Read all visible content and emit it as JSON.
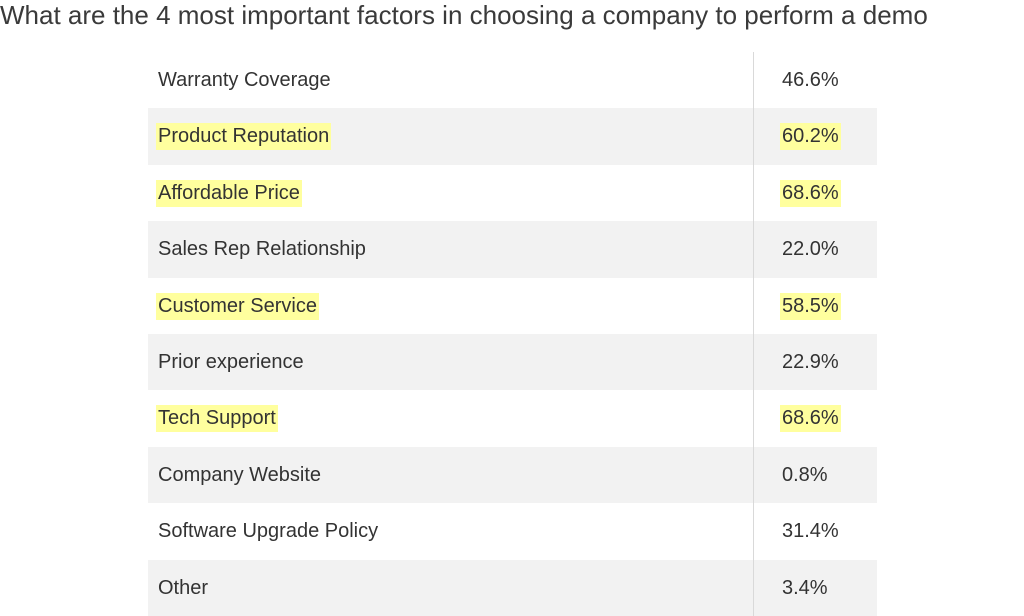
{
  "highlight_color": "#ffff9e",
  "chart_data": {
    "type": "table",
    "title": "What are the 4 most important factors in choosing a company to perform a demo",
    "columns": [
      "",
      ""
    ],
    "rows": [
      {
        "label": "Warranty Coverage",
        "value": "46.6%",
        "highlighted": false
      },
      {
        "label": "Product Reputation",
        "value": "60.2%",
        "highlighted": true
      },
      {
        "label": "Affordable Price",
        "value": "68.6%",
        "highlighted": true
      },
      {
        "label": "Sales Rep Relationship",
        "value": "22.0%",
        "highlighted": false
      },
      {
        "label": "Customer Service",
        "value": "58.5%",
        "highlighted": true
      },
      {
        "label": "Prior experience",
        "value": "22.9%",
        "highlighted": false
      },
      {
        "label": "Tech Support",
        "value": "68.6%",
        "highlighted": true
      },
      {
        "label": "Company Website",
        "value": "0.8%",
        "highlighted": false
      },
      {
        "label": "Software Upgrade Policy",
        "value": "31.4%",
        "highlighted": false
      },
      {
        "label": "Other",
        "value": "3.4%",
        "highlighted": false
      }
    ]
  }
}
